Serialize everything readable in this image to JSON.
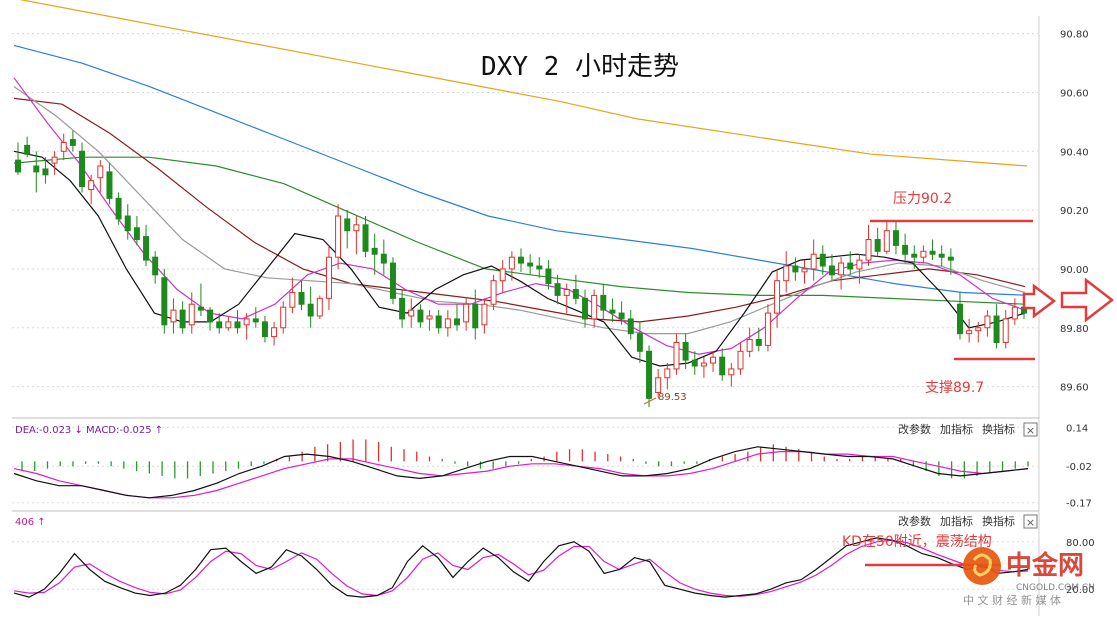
{
  "chart_data": {
    "type": "line",
    "title": "DXY 2 小时走势",
    "price_panel": {
      "ylim": [
        89.5,
        90.86
      ],
      "ticks": [
        90.8,
        90.6,
        90.4,
        90.2,
        90.0,
        89.8,
        89.6
      ],
      "tick_labels": [
        "90.80",
        "90.60",
        "90.40",
        "90.20",
        "90.00",
        "89.80",
        "89.60"
      ],
      "grid": true,
      "candles": [
        [
          90.37,
          90.43,
          90.32,
          90.33
        ],
        [
          90.42,
          90.45,
          90.38,
          90.39
        ],
        [
          90.35,
          90.4,
          90.26,
          90.33
        ],
        [
          90.34,
          90.38,
          90.29,
          90.32
        ],
        [
          90.36,
          90.4,
          90.32,
          90.38
        ],
        [
          90.4,
          90.46,
          90.37,
          90.43
        ],
        [
          90.44,
          90.47,
          90.4,
          90.42
        ],
        [
          90.4,
          90.43,
          90.26,
          90.28
        ],
        [
          90.27,
          90.32,
          90.22,
          90.3
        ],
        [
          90.31,
          90.37,
          90.26,
          90.35
        ],
        [
          90.33,
          90.36,
          90.22,
          90.24
        ],
        [
          90.24,
          90.26,
          90.15,
          90.17
        ],
        [
          90.18,
          90.22,
          90.1,
          90.13
        ],
        [
          90.14,
          90.18,
          90.08,
          90.1
        ],
        [
          90.11,
          90.15,
          90.01,
          90.03
        ],
        [
          90.04,
          90.06,
          89.95,
          89.98
        ],
        [
          89.97,
          90.0,
          89.78,
          89.81
        ],
        [
          89.82,
          89.9,
          89.78,
          89.86
        ],
        [
          89.86,
          89.89,
          89.78,
          89.8
        ],
        [
          89.81,
          89.92,
          89.78,
          89.88
        ],
        [
          89.87,
          89.95,
          89.84,
          89.86
        ],
        [
          89.86,
          89.87,
          89.79,
          89.82
        ],
        [
          89.82,
          89.85,
          89.78,
          89.8
        ],
        [
          89.8,
          89.84,
          89.79,
          89.82
        ],
        [
          89.82,
          89.86,
          89.78,
          89.8
        ],
        [
          89.81,
          89.85,
          89.76,
          89.83
        ],
        [
          89.83,
          89.87,
          89.8,
          89.82
        ],
        [
          89.82,
          89.84,
          89.75,
          89.77
        ],
        [
          89.77,
          89.82,
          89.74,
          89.8
        ],
        [
          89.8,
          89.89,
          89.78,
          89.87
        ],
        [
          89.87,
          89.97,
          89.85,
          89.92
        ],
        [
          89.92,
          89.96,
          89.86,
          89.88
        ],
        [
          89.88,
          89.94,
          89.8,
          89.84
        ],
        [
          89.84,
          89.91,
          89.83,
          89.9
        ],
        [
          89.9,
          90.08,
          89.86,
          90.04
        ],
        [
          90.04,
          90.22,
          90.0,
          90.18
        ],
        [
          90.17,
          90.2,
          90.07,
          90.13
        ],
        [
          90.13,
          90.18,
          90.05,
          90.15
        ],
        [
          90.15,
          90.18,
          90.04,
          90.06
        ],
        [
          90.07,
          90.12,
          89.98,
          90.05
        ],
        [
          90.05,
          90.1,
          89.98,
          90.02
        ],
        [
          90.02,
          90.04,
          89.88,
          89.9
        ],
        [
          89.9,
          89.93,
          89.8,
          89.83
        ],
        [
          89.84,
          89.9,
          89.8,
          89.86
        ],
        [
          89.86,
          89.88,
          89.8,
          89.82
        ],
        [
          89.83,
          89.86,
          89.79,
          89.84
        ],
        [
          89.84,
          89.86,
          89.78,
          89.8
        ],
        [
          89.8,
          89.86,
          89.77,
          89.83
        ],
        [
          89.83,
          89.88,
          89.79,
          89.81
        ],
        [
          89.82,
          89.9,
          89.79,
          89.88
        ],
        [
          89.88,
          89.93,
          89.76,
          89.8
        ],
        [
          89.81,
          89.9,
          89.78,
          89.88
        ],
        [
          89.88,
          89.98,
          89.86,
          89.96
        ],
        [
          89.96,
          90.03,
          89.92,
          90.0
        ],
        [
          90.0,
          90.06,
          89.96,
          90.04
        ],
        [
          90.04,
          90.07,
          89.99,
          90.02
        ],
        [
          90.02,
          90.05,
          89.98,
          90.01
        ],
        [
          90.01,
          90.04,
          89.97,
          90.0
        ],
        [
          90.0,
          90.03,
          89.93,
          89.95
        ],
        [
          89.95,
          89.98,
          89.88,
          89.91
        ],
        [
          89.91,
          89.95,
          89.85,
          89.93
        ],
        [
          89.93,
          89.98,
          89.88,
          89.9
        ],
        [
          89.9,
          89.93,
          89.8,
          89.83
        ],
        [
          89.83,
          89.93,
          89.8,
          89.91
        ],
        [
          89.91,
          89.95,
          89.83,
          89.86
        ],
        [
          89.86,
          89.9,
          89.82,
          89.85
        ],
        [
          89.85,
          89.89,
          89.81,
          89.83
        ],
        [
          89.83,
          89.86,
          89.76,
          89.78
        ],
        [
          89.78,
          89.82,
          89.68,
          89.72
        ],
        [
          89.72,
          89.74,
          89.53,
          89.56
        ],
        [
          89.58,
          89.66,
          89.56,
          89.63
        ],
        [
          89.63,
          89.68,
          89.59,
          89.66
        ],
        [
          89.66,
          89.78,
          89.64,
          89.75
        ],
        [
          89.75,
          89.78,
          89.66,
          89.69
        ],
        [
          89.69,
          89.72,
          89.64,
          89.67
        ],
        [
          89.67,
          89.7,
          89.63,
          89.68
        ],
        [
          89.68,
          89.72,
          89.65,
          89.7
        ],
        [
          89.7,
          89.73,
          89.62,
          89.64
        ],
        [
          89.64,
          89.68,
          89.6,
          89.66
        ],
        [
          89.66,
          89.75,
          89.64,
          89.72
        ],
        [
          89.72,
          89.8,
          89.7,
          89.76
        ],
        [
          89.76,
          89.8,
          89.72,
          89.74
        ],
        [
          89.74,
          89.88,
          89.72,
          89.85
        ],
        [
          89.85,
          90.0,
          89.8,
          89.96
        ],
        [
          89.96,
          90.06,
          89.92,
          90.01
        ],
        [
          90.01,
          90.04,
          89.96,
          89.99
        ],
        [
          89.99,
          90.03,
          89.95,
          90.0
        ],
        [
          90.0,
          90.1,
          89.96,
          90.05
        ],
        [
          90.05,
          90.08,
          89.98,
          90.01
        ],
        [
          90.01,
          90.05,
          89.96,
          89.98
        ],
        [
          89.98,
          90.04,
          89.93,
          90.02
        ],
        [
          90.02,
          90.06,
          89.98,
          90.0
        ],
        [
          90.0,
          90.05,
          89.95,
          90.03
        ],
        [
          90.03,
          90.15,
          90.01,
          90.1
        ],
        [
          90.1,
          90.14,
          90.04,
          90.06
        ],
        [
          90.06,
          90.16,
          90.05,
          90.13
        ],
        [
          90.13,
          90.16,
          90.05,
          90.08
        ],
        [
          90.08,
          90.12,
          90.02,
          90.05
        ],
        [
          90.05,
          90.08,
          90.0,
          90.04
        ],
        [
          90.04,
          90.08,
          90.02,
          90.06
        ],
        [
          90.06,
          90.1,
          90.03,
          90.05
        ],
        [
          90.05,
          90.08,
          90.01,
          90.04
        ],
        [
          90.04,
          90.07,
          89.98,
          90.03
        ],
        [
          89.88,
          89.92,
          89.76,
          89.78
        ],
        [
          89.78,
          89.83,
          89.75,
          89.79
        ],
        [
          89.79,
          89.82,
          89.75,
          89.8
        ],
        [
          89.8,
          89.86,
          89.77,
          89.84
        ],
        [
          89.84,
          89.88,
          89.73,
          89.75
        ],
        [
          89.75,
          89.86,
          89.73,
          89.83
        ],
        [
          89.83,
          89.9,
          89.81,
          89.87
        ],
        [
          89.87,
          89.89,
          89.83,
          89.85
        ]
      ],
      "moving_averages": [
        {
          "color": "#e8a317",
          "values": [
            90.92,
            90.87,
            90.82,
            90.77,
            90.72,
            90.67,
            90.62,
            90.57,
            90.51,
            90.47,
            90.43,
            90.39,
            90.37,
            90.35
          ]
        },
        {
          "color": "#2b7fd8",
          "values": [
            90.76,
            90.7,
            90.62,
            90.53,
            90.44,
            90.35,
            90.26,
            90.18,
            90.13,
            90.1,
            90.07,
            90.03,
            89.99,
            89.95,
            89.92,
            89.91
          ]
        },
        {
          "color": "#2e8b2e",
          "values": [
            90.36,
            90.38,
            90.38,
            90.35,
            90.29,
            90.19,
            90.09,
            90.0,
            89.97,
            89.94,
            89.92,
            89.91,
            89.91,
            89.9,
            89.89,
            89.88
          ]
        },
        {
          "color": "#8b1c1c",
          "values": [
            90.58,
            90.56,
            90.46,
            90.34,
            90.21,
            90.09,
            90.0,
            89.95,
            89.93,
            89.91,
            89.89,
            89.86,
            89.83,
            89.82,
            89.84,
            89.87,
            89.91,
            89.96,
            89.98,
            90.0,
            89.98,
            89.94
          ]
        },
        {
          "color": "#999999",
          "values": [
            90.62,
            90.52,
            90.4,
            90.25,
            90.1,
            90.0,
            89.97,
            89.96,
            89.95,
            89.92,
            89.89,
            89.88,
            89.86,
            89.83,
            89.8,
            89.78,
            89.78,
            89.82,
            89.88,
            89.94,
            89.99,
            90.02,
            90.01,
            89.96,
            89.92
          ]
        },
        {
          "color": "#cc33cc",
          "values": [
            90.65,
            90.5,
            90.36,
            90.2,
            90.05,
            89.93,
            89.85,
            89.83,
            89.88,
            89.98,
            90.02,
            90.0,
            89.93,
            89.88,
            89.88,
            89.92,
            89.95,
            89.93,
            89.87,
            89.8,
            89.74,
            89.71,
            89.73,
            89.8,
            89.9,
            89.99,
            90.02,
            90.03,
            90.02,
            89.98,
            89.9,
            89.86
          ]
        },
        {
          "color": "#111111",
          "values": [
            90.4,
            90.38,
            90.3,
            90.18,
            90.0,
            89.85,
            89.82,
            89.82,
            89.88,
            90.0,
            90.12,
            90.1,
            90.0,
            89.87,
            89.85,
            89.93,
            89.98,
            90.01,
            89.96,
            89.9,
            89.86,
            89.82,
            89.7,
            89.67,
            89.68,
            89.72,
            89.85,
            89.99,
            90.03,
            90.04,
            90.05,
            90.04,
            90.02,
            89.92,
            89.8,
            89.82,
            89.85
          ]
        }
      ],
      "annotations": [
        {
          "text": "压力90.2",
          "level": 90.2
        },
        {
          "text": "支撑89.7",
          "level": 89.7
        },
        {
          "text": "89.53",
          "level": 89.53
        }
      ]
    },
    "macd_panel": {
      "indicator_label": "DEA:-0.023 ↓ MACD:-0.025 ↑",
      "tick_labels": [
        "0.14",
        "-0.02",
        "-0.17"
      ],
      "ylim": [
        -0.2,
        0.17
      ],
      "histogram": [
        -0.04,
        -0.04,
        -0.03,
        -0.02,
        -0.02,
        -0.01,
        -0.01,
        -0.02,
        -0.03,
        -0.04,
        -0.05,
        -0.06,
        -0.07,
        -0.07,
        -0.06,
        -0.05,
        -0.04,
        -0.03,
        -0.02,
        -0.01,
        0.01,
        0.02,
        0.04,
        0.06,
        0.07,
        0.08,
        0.09,
        0.09,
        0.08,
        0.06,
        0.05,
        0.04,
        0.02,
        0.01,
        -0.01,
        -0.02,
        -0.03,
        -0.03,
        -0.02,
        -0.01,
        0.01,
        0.02,
        0.04,
        0.05,
        0.05,
        0.04,
        0.03,
        0.02,
        0.01,
        -0.01,
        -0.02,
        -0.02,
        -0.01,
        -0.01,
        0.01,
        0.02,
        0.03,
        0.04,
        0.06,
        0.07,
        0.06,
        0.05,
        0.04,
        0.02,
        0.01,
        0.01,
        0.02,
        0.02,
        0.01,
        0.01,
        -0.02,
        -0.04,
        -0.06,
        -0.07,
        -0.07,
        -0.06,
        -0.05,
        -0.04,
        -0.03,
        -0.02
      ],
      "dif": [
        -0.05,
        -0.08,
        -0.1,
        -0.1,
        -0.12,
        -0.14,
        -0.15,
        -0.14,
        -0.12,
        -0.09,
        -0.05,
        -0.02,
        0.02,
        0.03,
        0.02,
        0.0,
        -0.03,
        -0.06,
        -0.07,
        -0.06,
        -0.03,
        0.0,
        0.02,
        0.02,
        0.0,
        -0.02,
        -0.04,
        -0.06,
        -0.06,
        -0.05,
        -0.03,
        0.01,
        0.04,
        0.06,
        0.05,
        0.04,
        0.03,
        0.02,
        0.02,
        0.01,
        -0.02,
        -0.05,
        -0.06,
        -0.05,
        -0.04,
        -0.03
      ],
      "dea": [
        -0.03,
        -0.05,
        -0.08,
        -0.1,
        -0.12,
        -0.14,
        -0.15,
        -0.15,
        -0.14,
        -0.12,
        -0.09,
        -0.06,
        -0.03,
        -0.01,
        0.01,
        0.01,
        -0.01,
        -0.03,
        -0.05,
        -0.06,
        -0.05,
        -0.04,
        -0.02,
        -0.01,
        -0.01,
        -0.02,
        -0.03,
        -0.05,
        -0.06,
        -0.06,
        -0.05,
        -0.03,
        0.0,
        0.03,
        0.04,
        0.04,
        0.03,
        0.03,
        0.02,
        0.02,
        0.0,
        -0.02,
        -0.04,
        -0.05,
        -0.04,
        -0.03
      ]
    },
    "kd_panel": {
      "indicator_label": "406 ↑",
      "tick_labels": [
        "80.00",
        "20.00"
      ],
      "ylim": [
        0,
        100
      ],
      "k": [
        15,
        10,
        20,
        40,
        65,
        45,
        30,
        22,
        15,
        12,
        15,
        25,
        45,
        70,
        72,
        55,
        40,
        48,
        70,
        62,
        45,
        25,
        12,
        10,
        12,
        22,
        55,
        75,
        60,
        35,
        55,
        72,
        60,
        42,
        30,
        55,
        75,
        80,
        68,
        40,
        45,
        60,
        55,
        25,
        20,
        15,
        12,
        10,
        12,
        14,
        20,
        28,
        32,
        45,
        60,
        75,
        80,
        85,
        82,
        75,
        65,
        60,
        52,
        45,
        50,
        40,
        42,
        45
      ],
      "d": [
        18,
        15,
        16,
        28,
        48,
        52,
        40,
        30,
        22,
        16,
        14,
        19,
        35,
        55,
        68,
        65,
        50,
        45,
        55,
        66,
        58,
        40,
        24,
        14,
        12,
        18,
        35,
        58,
        66,
        50,
        45,
        60,
        64,
        52,
        38,
        44,
        62,
        74,
        74,
        55,
        45,
        52,
        58,
        42,
        28,
        20,
        15,
        12,
        11,
        13,
        17,
        23,
        29,
        38,
        50,
        64,
        74,
        80,
        82,
        79,
        72,
        64,
        57,
        50,
        48,
        44,
        42,
        43
      ],
      "annotation": "KD在50附近，震荡结构"
    },
    "panel_controls": [
      "改参数",
      "加指标",
      "换指标",
      "×"
    ],
    "watermark": {
      "brand": "中金网",
      "site": "CNGOLD.COM.CN",
      "slogan": "中 文 财 经 新 媒 体"
    }
  }
}
